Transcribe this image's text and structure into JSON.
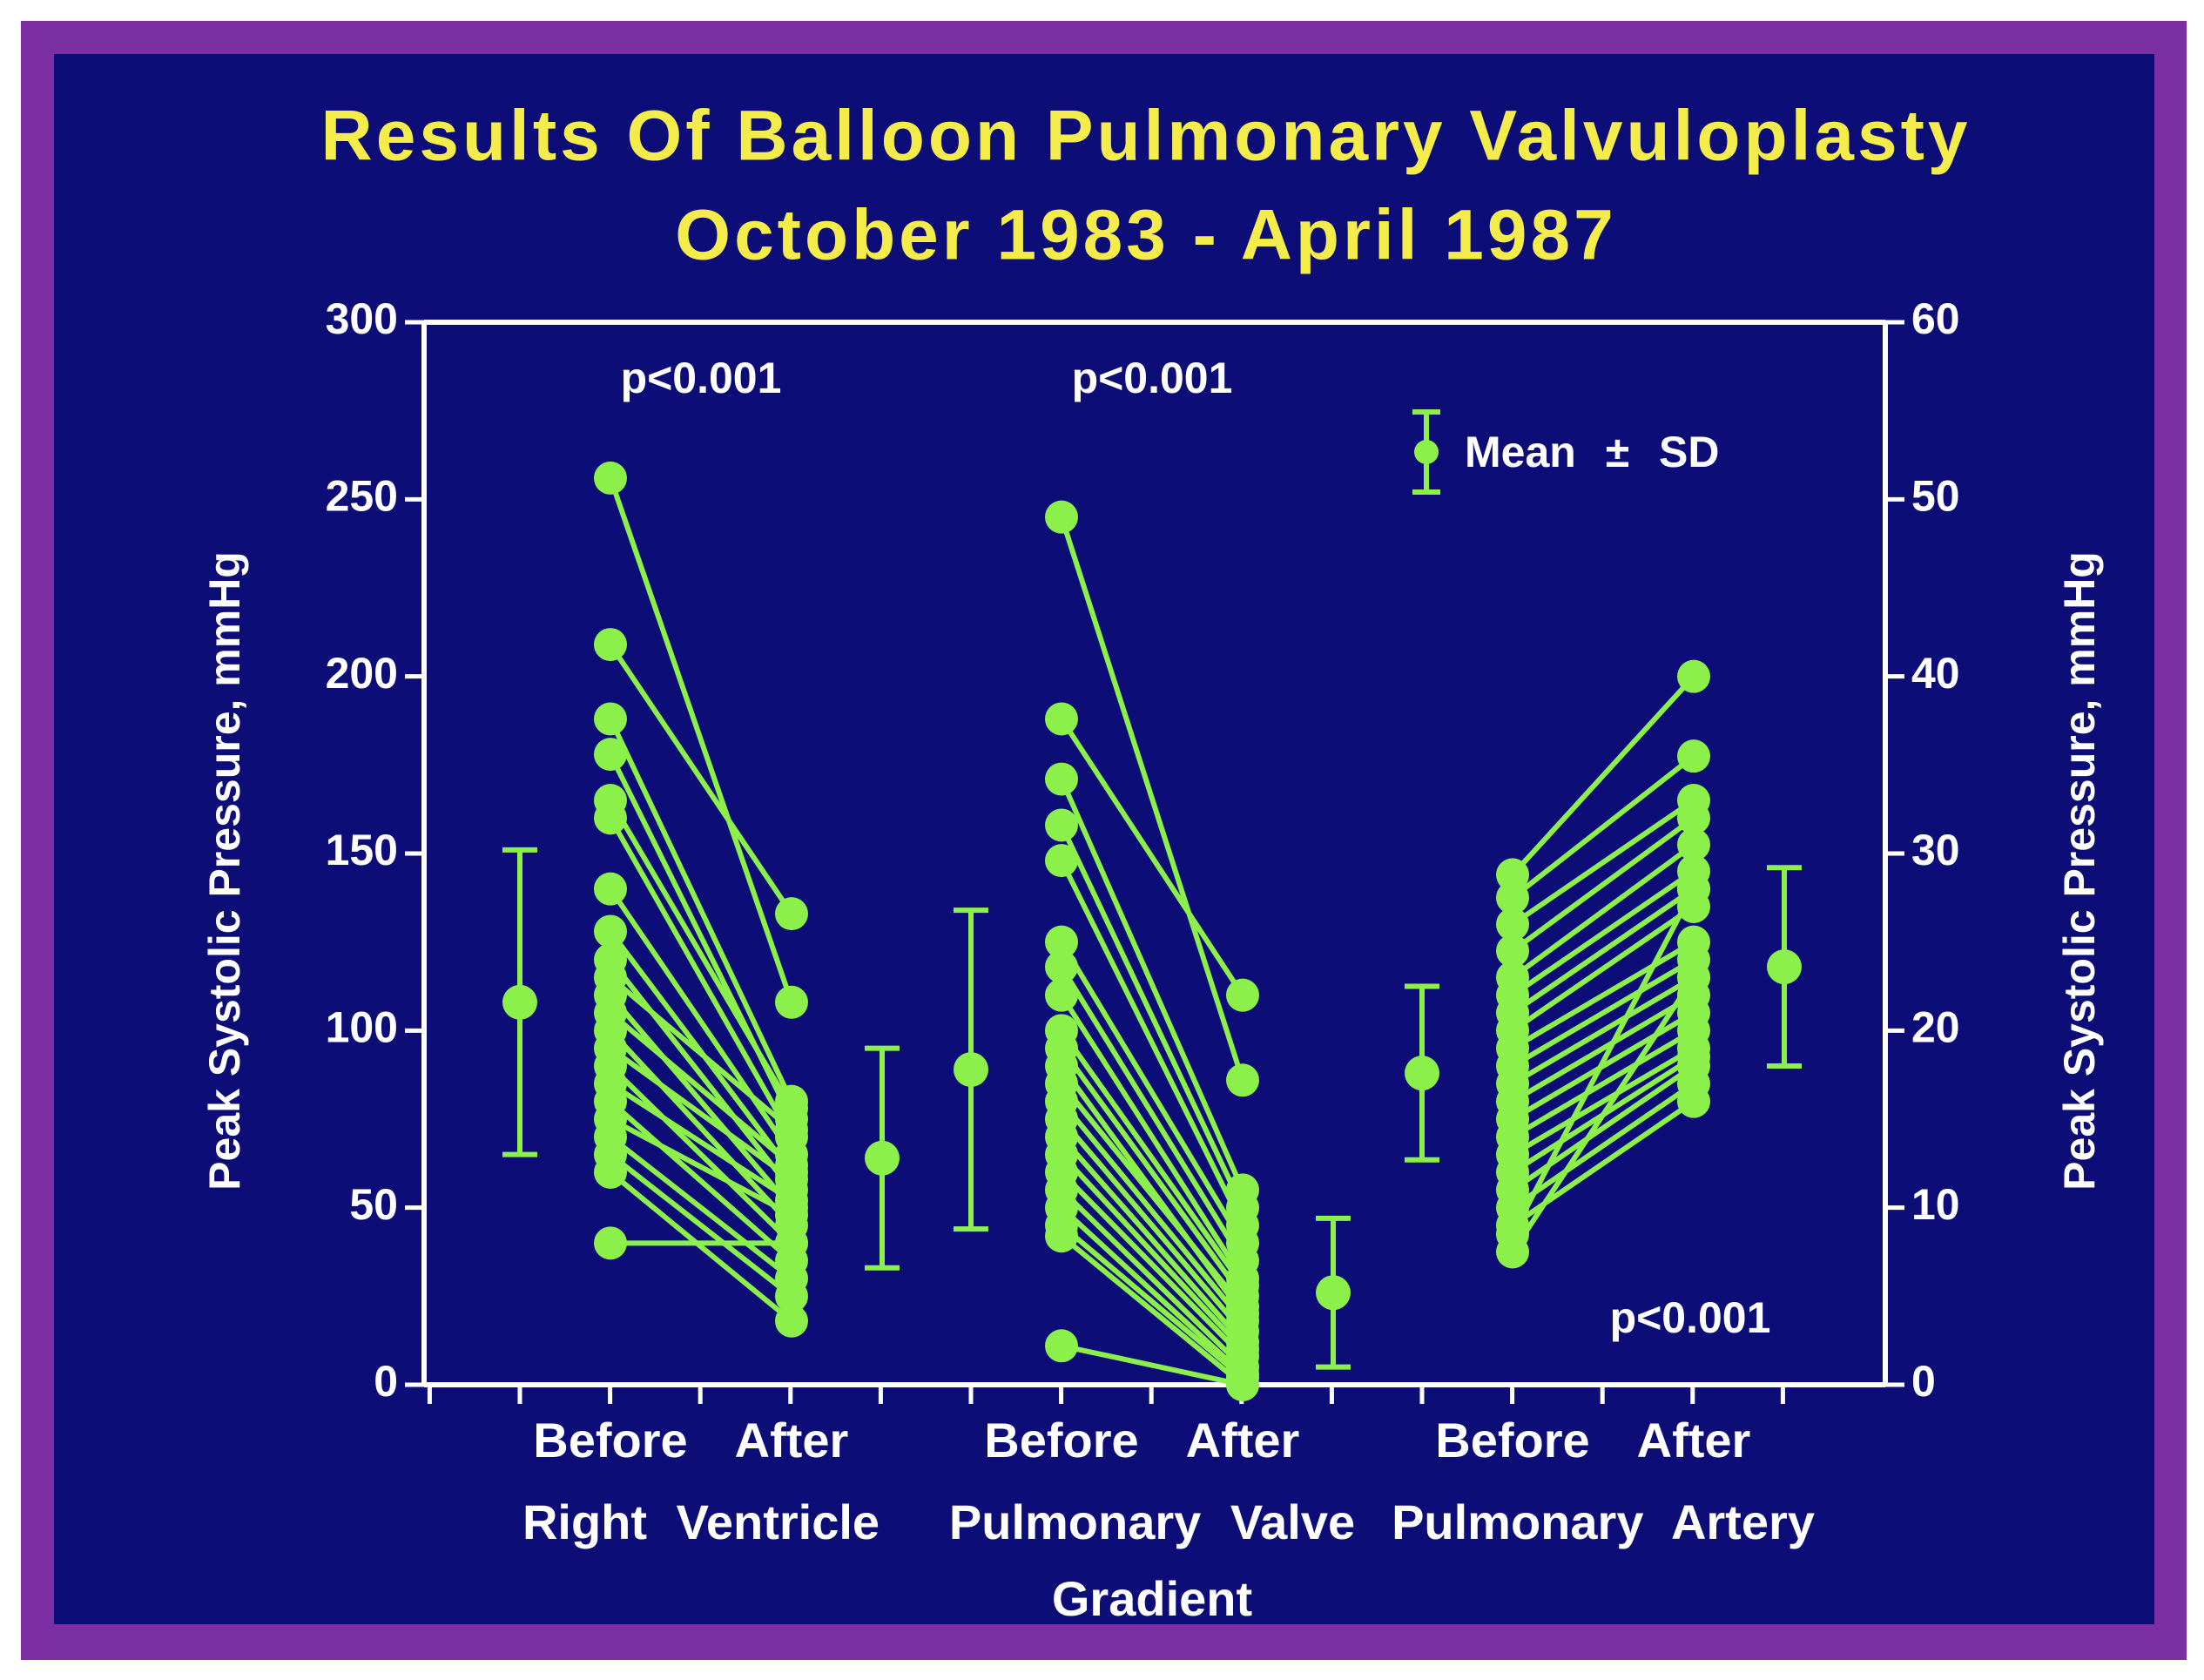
{
  "chart_data": {
    "type": "slopegraph",
    "title": "Results Of Balloon Pulmonary Valvuloplasty",
    "subtitle": "October 1983 - April 1987",
    "ylabel": "Peak Systolic Pressure, mmHg",
    "y2label": "Peak Systolic Pressure, mmHg",
    "ylim": [
      0,
      300
    ],
    "yticks": [
      0,
      50,
      100,
      150,
      200,
      250,
      300
    ],
    "y2lim": [
      0,
      60
    ],
    "y2ticks": [
      0,
      10,
      20,
      30,
      40,
      50,
      60
    ],
    "legend": "Mean ± SD",
    "legend_position": "upper right",
    "color": "#8cf04a",
    "groups": [
      {
        "name_lines": [
          "Right Ventricle"
        ],
        "axis": "y",
        "p_label": "p<0.001",
        "categories": [
          "Before",
          "After"
        ],
        "before": [
          256,
          209,
          188,
          178,
          165,
          160,
          140,
          128,
          120,
          115,
          110,
          105,
          100,
          95,
          90,
          85,
          80,
          75,
          70,
          65,
          60,
          40
        ],
        "after": [
          108,
          133,
          80,
          75,
          78,
          70,
          65,
          60,
          55,
          72,
          50,
          62,
          45,
          58,
          40,
          52,
          35,
          48,
          30,
          25,
          18,
          40
        ],
        "mean": [
          108,
          64
        ],
        "sd": [
          43,
          31
        ]
      },
      {
        "name_lines": [
          "Pulmonary Valve",
          "Gradient"
        ],
        "axis": "y",
        "p_label": "p<0.001",
        "categories": [
          "Before",
          "After"
        ],
        "before": [
          245,
          188,
          171,
          158,
          148,
          125,
          118,
          110,
          100,
          95,
          90,
          85,
          80,
          75,
          70,
          65,
          60,
          55,
          50,
          45,
          42,
          11
        ],
        "after": [
          86,
          110,
          55,
          50,
          45,
          40,
          35,
          30,
          28,
          25,
          20,
          22,
          18,
          15,
          12,
          10,
          8,
          5,
          3,
          2,
          0,
          0
        ],
        "mean": [
          89,
          26
        ],
        "sd": [
          45,
          21
        ]
      },
      {
        "name_lines": [
          "Pulmonary Artery"
        ],
        "axis": "y2",
        "p_label": "p<0.001",
        "categories": [
          "Before",
          "After"
        ],
        "before": [
          28.8,
          27.5,
          26,
          24.5,
          23,
          22,
          21,
          20,
          19,
          18,
          17,
          16,
          15,
          14,
          13,
          12,
          11,
          10,
          9,
          8.5,
          7.5
        ],
        "after": [
          40,
          35.5,
          33,
          32,
          30.5,
          29,
          28,
          27,
          25,
          24,
          23,
          22,
          21,
          20,
          19,
          18.5,
          18,
          17,
          16,
          28,
          23
        ],
        "mean": [
          17.6,
          23.6
        ],
        "sd": [
          4.9,
          5.6
        ]
      }
    ]
  }
}
